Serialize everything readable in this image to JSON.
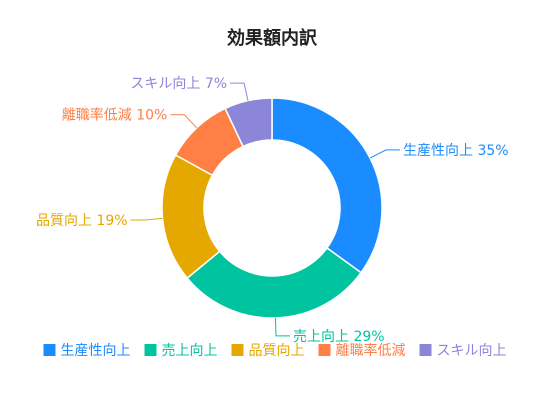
{
  "chart_data": {
    "type": "pie",
    "subtype": "donut",
    "title": "効果額内訳",
    "unit": "%",
    "slices": [
      {
        "name": "生産性向上",
        "value": 35,
        "label": "生産性向上 35%",
        "color": "#1a8cff"
      },
      {
        "name": "売上向上",
        "value": 29,
        "label": "売上向上 29%",
        "color": "#00c49f"
      },
      {
        "name": "品質向上",
        "value": 19,
        "label": "品質向上 19%",
        "color": "#e5a800"
      },
      {
        "name": "離職率低減",
        "value": 10,
        "label": "離職率低減 10%",
        "color": "#ff7f45"
      },
      {
        "name": "スキル向上",
        "value": 7,
        "label": "スキル向上 7%",
        "color": "#8c86d9"
      }
    ],
    "legend": {
      "placement": "bottom",
      "items": [
        "生産性向上",
        "売上向上",
        "品質向上",
        "離職率低減",
        "スキル向上"
      ]
    }
  }
}
